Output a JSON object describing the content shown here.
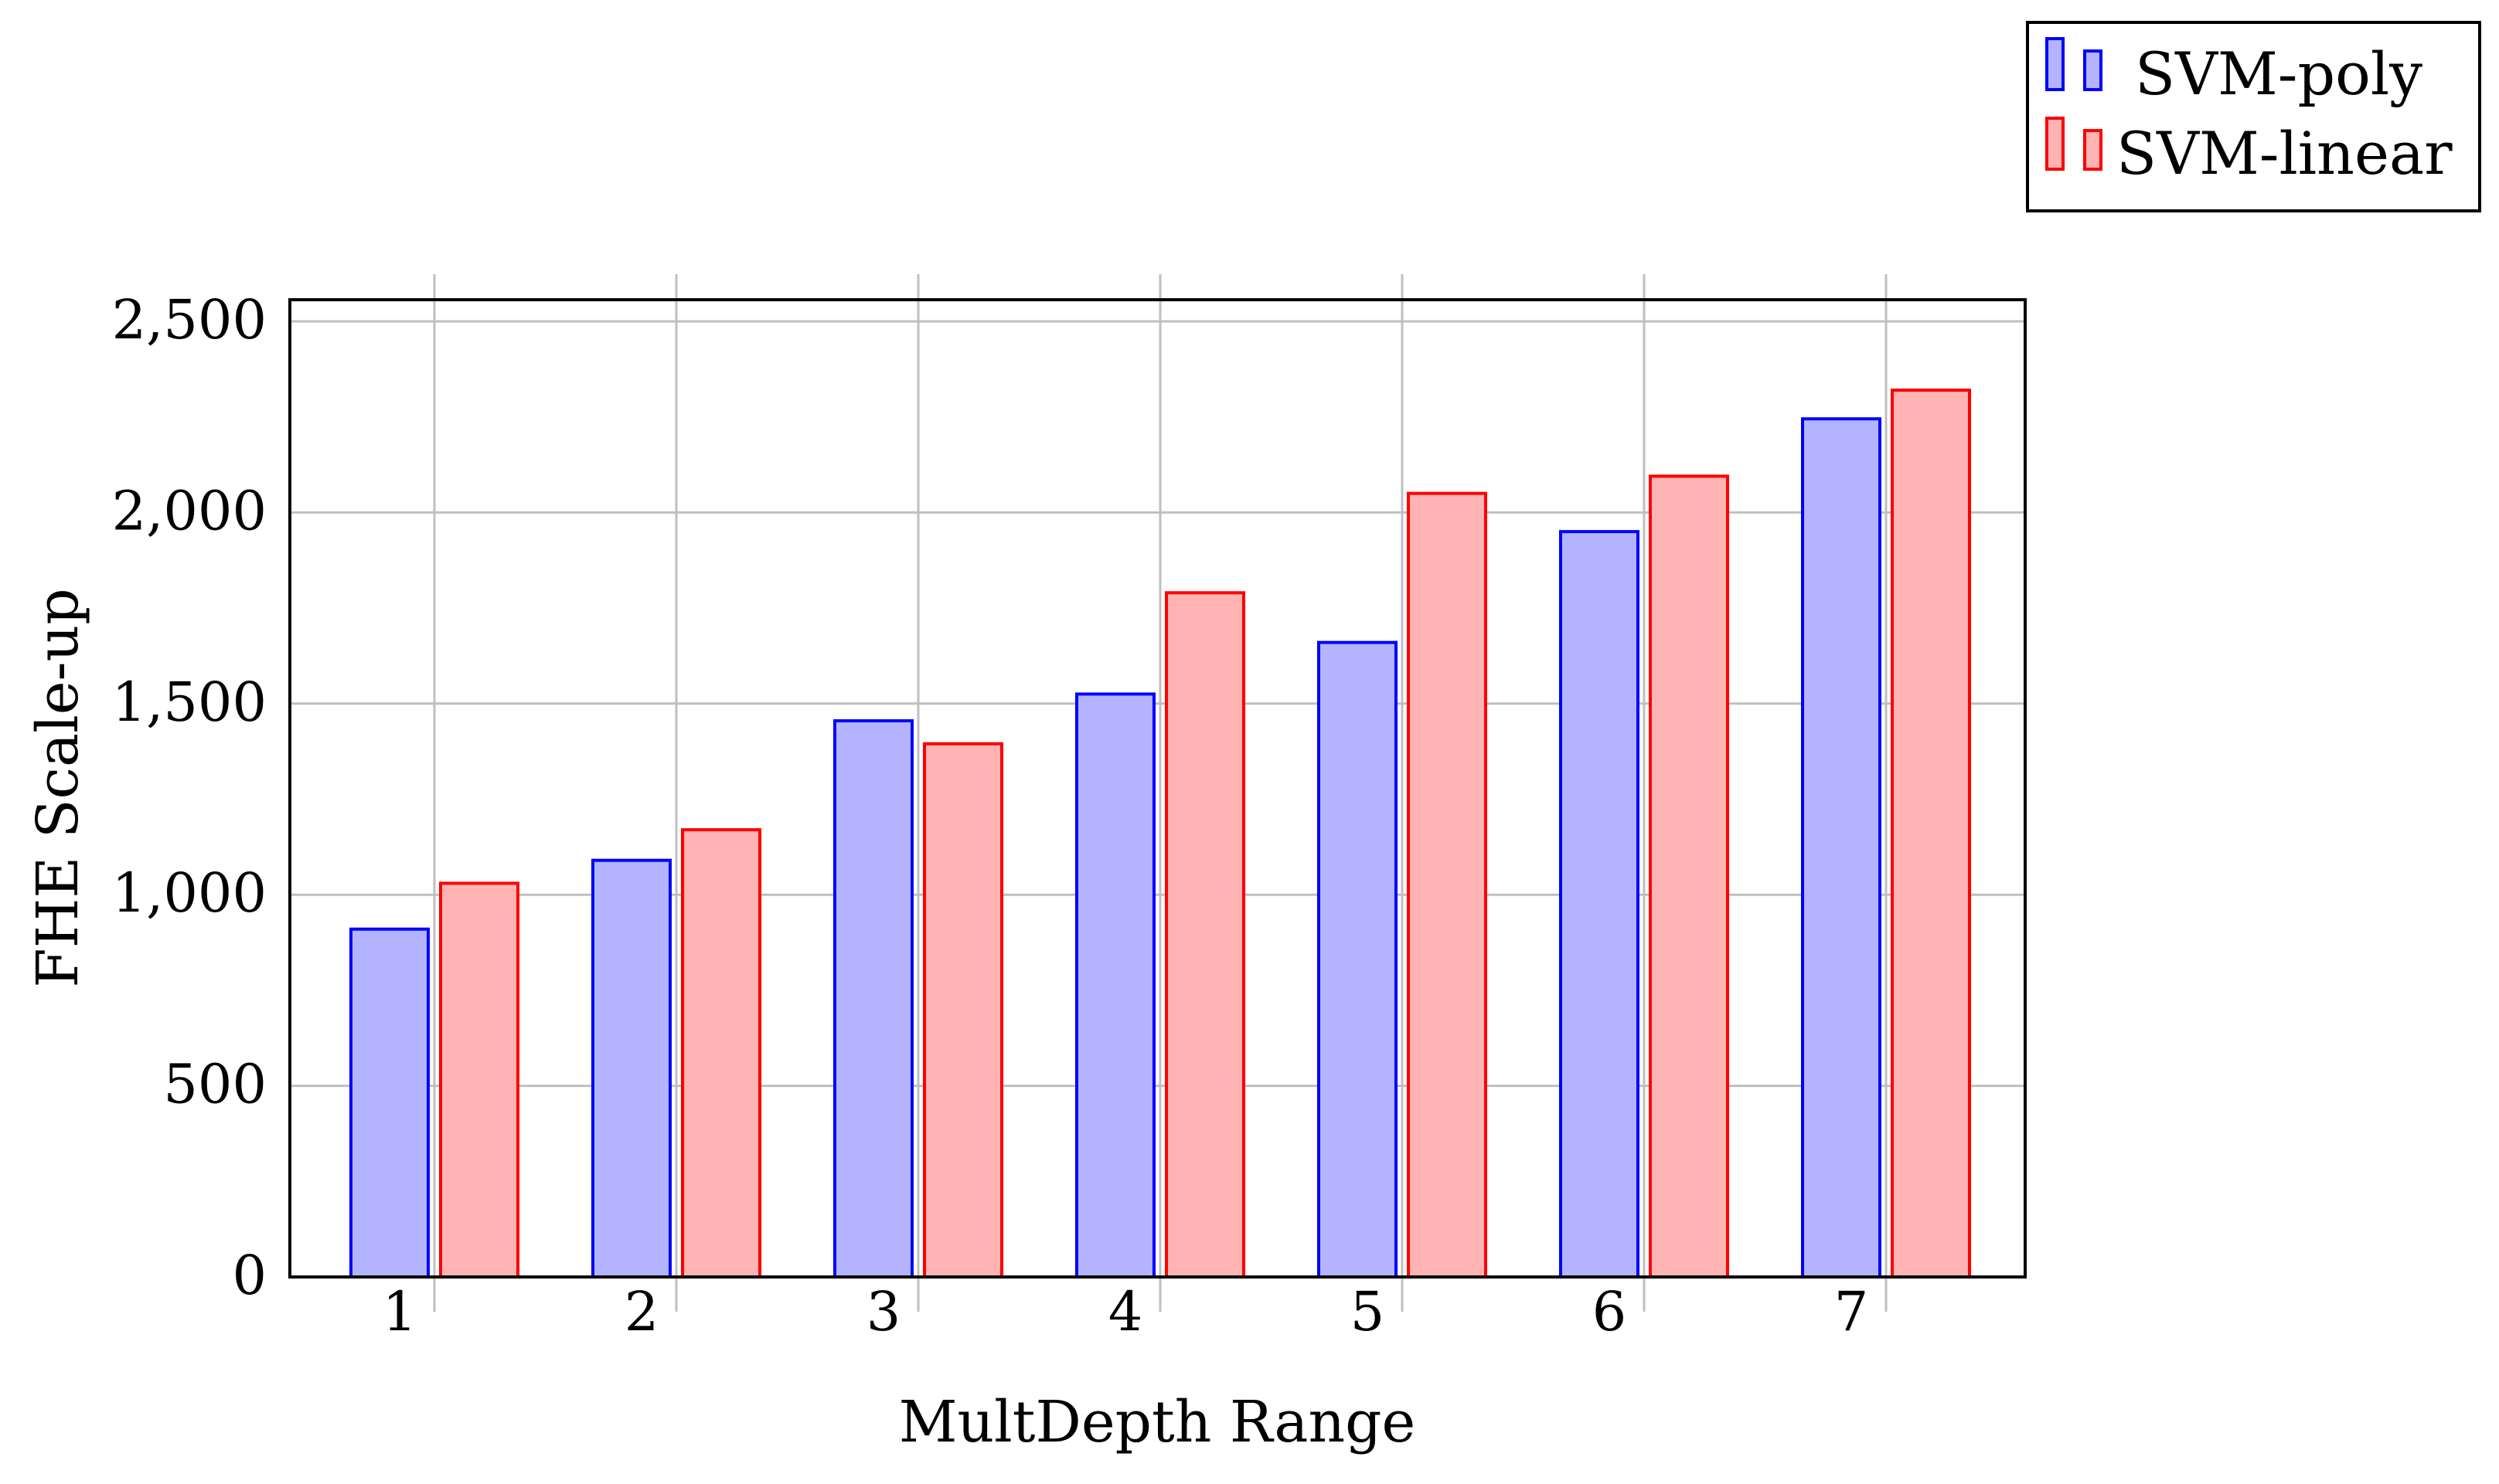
{
  "chart_data": {
    "type": "bar",
    "xlabel": "MultDepth Range",
    "ylabel": "FHE Scale-up",
    "categories": [
      "1",
      "2",
      "3",
      "4",
      "5",
      "6",
      "7"
    ],
    "ylim": [
      0,
      2550
    ],
    "yticks": [
      0,
      500,
      1000,
      1500,
      2000,
      2500
    ],
    "ytick_labels": [
      "0",
      "500",
      "1,000",
      "1,500",
      "2,000",
      "2,500"
    ],
    "grid": true,
    "legend_position": "top-right, outside plot",
    "series": [
      {
        "name": "SVM-poly",
        "values": [
          910,
          1090,
          1455,
          1525,
          1660,
          1950,
          2245
        ],
        "fill": "#b3b3ff",
        "stroke": "#0000ff"
      },
      {
        "name": "SVM-linear",
        "values": [
          1030,
          1170,
          1395,
          1790,
          2050,
          2095,
          2320
        ],
        "fill": "#ffb3b3",
        "stroke": "#ff0000"
      }
    ]
  }
}
